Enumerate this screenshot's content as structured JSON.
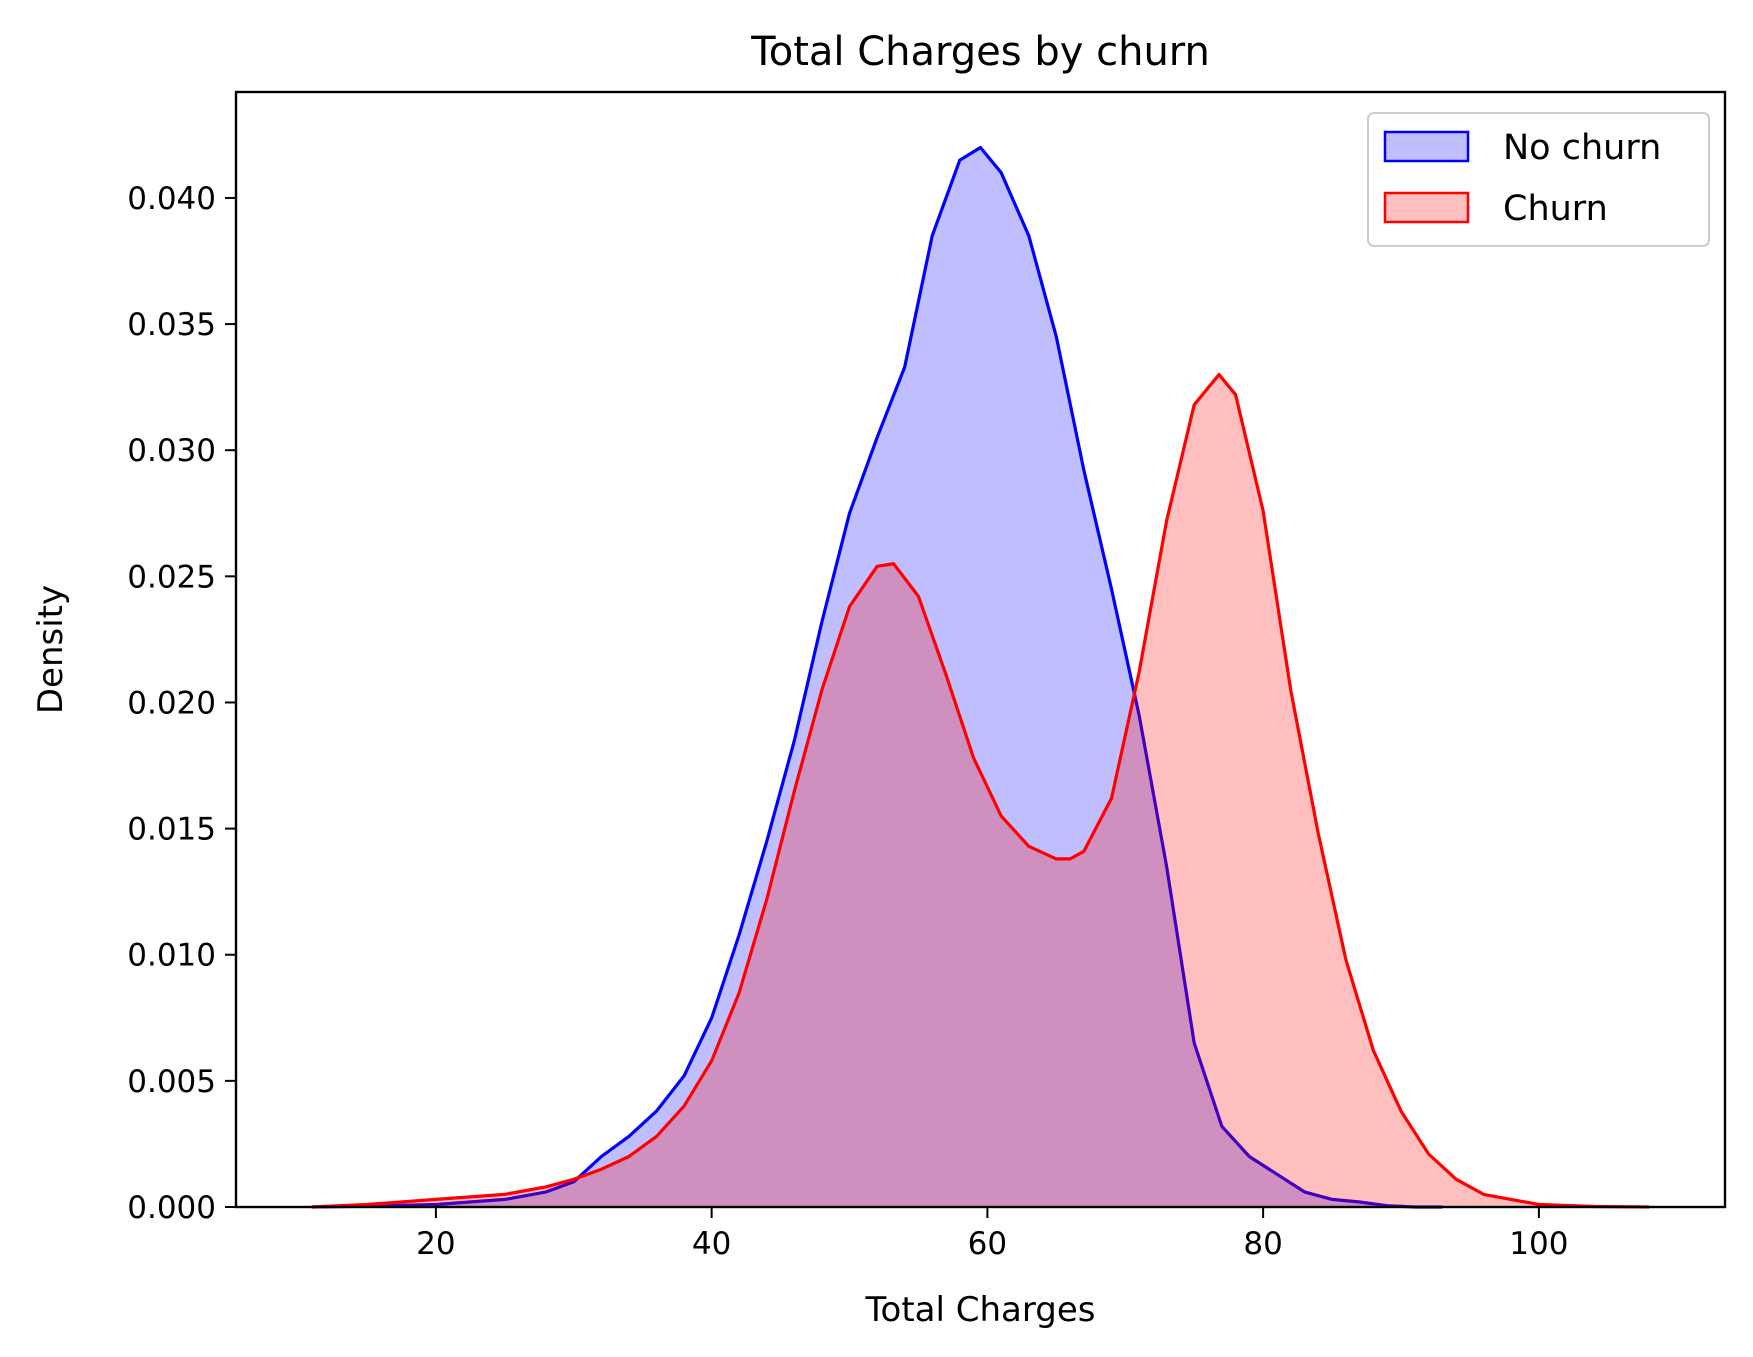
{
  "chart_data": {
    "type": "area",
    "title": "Total Charges by churn",
    "xlabel": "Total Charges",
    "ylabel": "Density",
    "xlim": [
      5.5,
      113.5
    ],
    "ylim": [
      0,
      0.0442
    ],
    "xticks": [
      20,
      40,
      60,
      80,
      100
    ],
    "yticks": [
      0.0,
      0.005,
      0.01,
      0.015,
      0.02,
      0.025,
      0.03,
      0.035,
      0.04
    ],
    "ytick_labels": [
      "0.000",
      "0.005",
      "0.010",
      "0.015",
      "0.020",
      "0.025",
      "0.030",
      "0.035",
      "0.040"
    ],
    "grid": false,
    "legend_position": "top-right",
    "series": [
      {
        "name": "No churn",
        "line_color": "#0000ff",
        "fill_color": "#bfbfff",
        "x": [
          11,
          15,
          20,
          25,
          28,
          30,
          32,
          34,
          36,
          38,
          40,
          42,
          44,
          46,
          48,
          50,
          52,
          54,
          56,
          58,
          59.5,
          61,
          63,
          65,
          67,
          69,
          71,
          73,
          75,
          77,
          79,
          81,
          83,
          85,
          87,
          89,
          91,
          93
        ],
        "y": [
          0.0,
          3e-05,
          0.0001,
          0.0003,
          0.0006,
          0.001,
          0.002,
          0.0028,
          0.0038,
          0.0052,
          0.0075,
          0.0108,
          0.0145,
          0.0185,
          0.0232,
          0.0275,
          0.0305,
          0.0333,
          0.0385,
          0.0415,
          0.042,
          0.041,
          0.0385,
          0.0345,
          0.0292,
          0.0245,
          0.0195,
          0.0135,
          0.0065,
          0.0032,
          0.002,
          0.0013,
          0.0006,
          0.0003,
          0.0002,
          5e-05,
          0.0,
          0.0
        ]
      },
      {
        "name": "Churn",
        "line_color": "#ff0000",
        "fill_color": "#ffbfbf",
        "x": [
          11,
          15,
          20,
          25,
          28,
          30,
          32,
          34,
          36,
          38,
          40,
          42,
          44,
          46,
          48,
          50,
          52,
          53.2,
          55,
          57,
          59,
          61,
          63,
          65,
          66,
          67,
          69,
          71,
          73,
          75,
          76.8,
          78,
          80,
          82,
          84,
          86,
          88,
          90,
          92,
          94,
          96,
          100,
          104,
          108
        ],
        "y": [
          0.0,
          0.0001,
          0.0003,
          0.0005,
          0.0008,
          0.0011,
          0.0015,
          0.002,
          0.0028,
          0.004,
          0.0058,
          0.0085,
          0.0122,
          0.0165,
          0.0205,
          0.0238,
          0.0254,
          0.0255,
          0.0242,
          0.0211,
          0.0178,
          0.0155,
          0.0143,
          0.0138,
          0.0138,
          0.0141,
          0.0162,
          0.0212,
          0.0272,
          0.0318,
          0.033,
          0.0322,
          0.0276,
          0.0205,
          0.0148,
          0.0098,
          0.0062,
          0.0038,
          0.0021,
          0.0011,
          0.0005,
          0.0001,
          2e-05,
          0.0
        ]
      }
    ]
  }
}
